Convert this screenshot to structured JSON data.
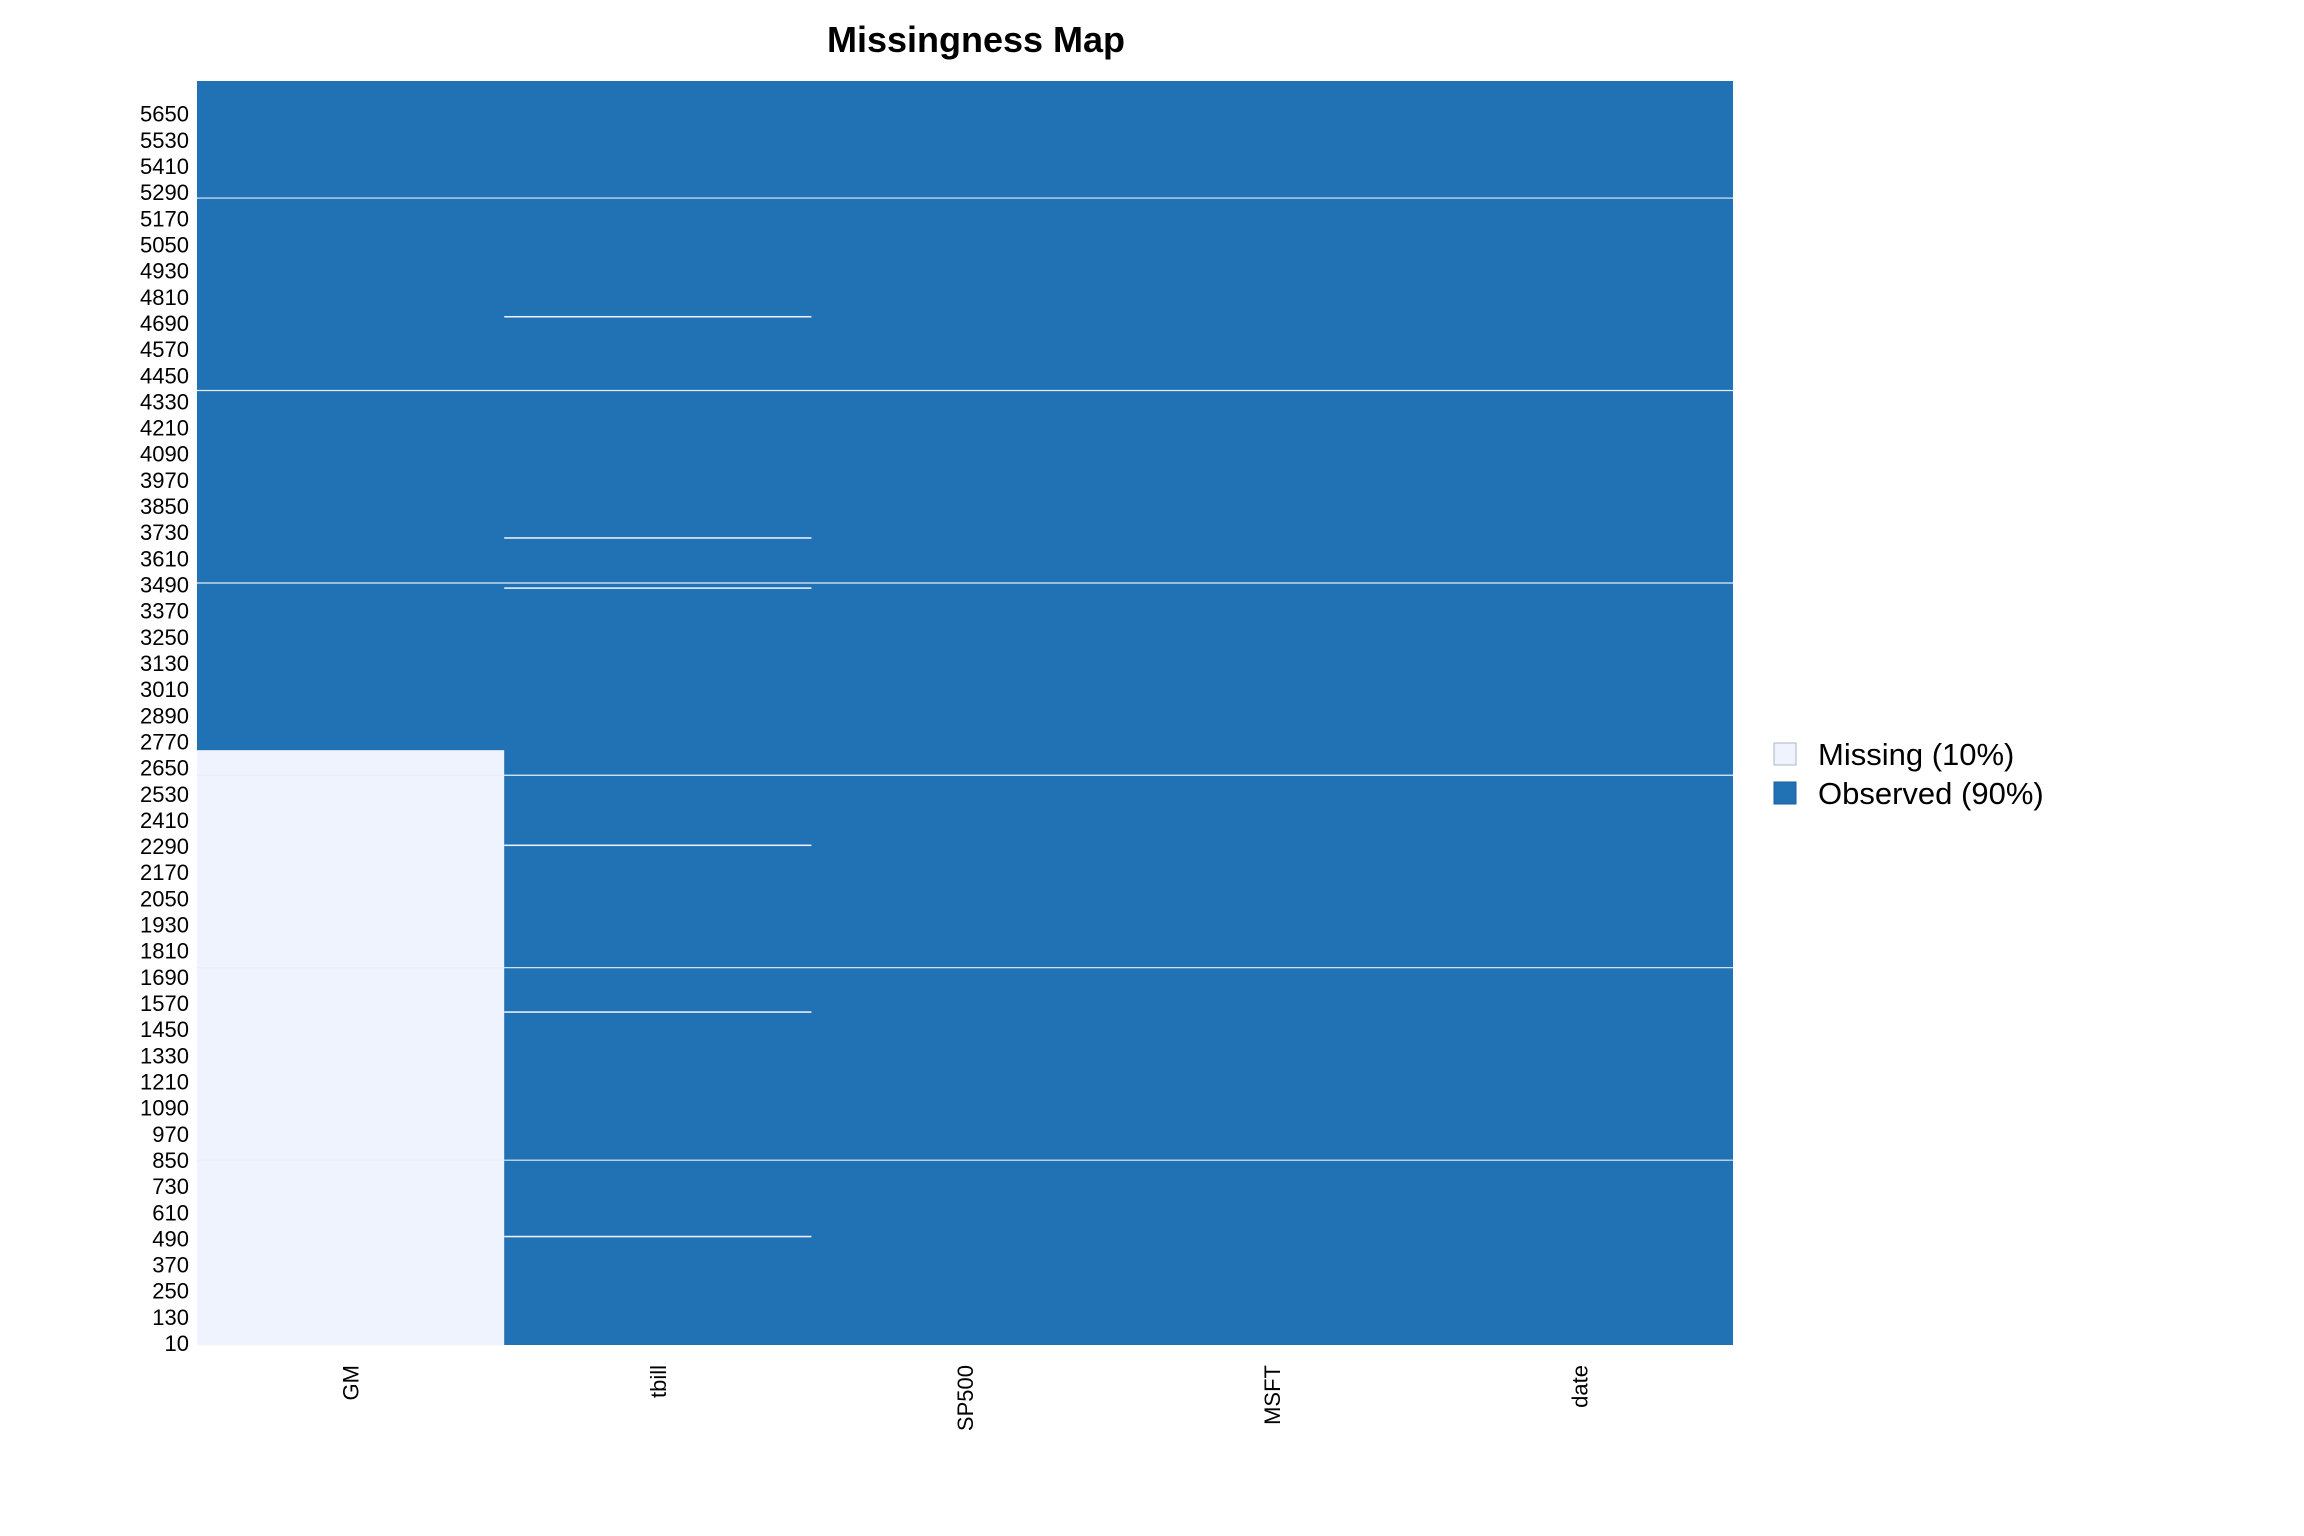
{
  "chart_data": {
    "type": "heatmap",
    "title": "Missingness Map",
    "xlabel": "",
    "ylabel": "",
    "columns": [
      "GM",
      "tbill",
      "SP500",
      "MSFT",
      "date"
    ],
    "row_range": [
      1,
      5800
    ],
    "row_tick_labels": [
      "5650",
      "5530",
      "5410",
      "5290",
      "5170",
      "5050",
      "4930",
      "4810",
      "4690",
      "4570",
      "4450",
      "4330",
      "4210",
      "4090",
      "3970",
      "3850",
      "3730",
      "3610",
      "3490",
      "3370",
      "3250",
      "3130",
      "3010",
      "2890",
      "2770",
      "2650",
      "2530",
      "2410",
      "2290",
      "2170",
      "2050",
      "1930",
      "1810",
      "1690",
      "1570",
      "1450",
      "1330",
      "1210",
      "1090",
      "970",
      "850",
      "730",
      "610",
      "490",
      "370",
      "250",
      "130",
      "10"
    ],
    "row_tick_values": [
      5650,
      5530,
      5410,
      5290,
      5170,
      5050,
      4930,
      4810,
      4690,
      4570,
      4450,
      4330,
      4210,
      4090,
      3970,
      3850,
      3730,
      3610,
      3490,
      3370,
      3250,
      3130,
      3010,
      2890,
      2770,
      2650,
      2530,
      2410,
      2290,
      2170,
      2050,
      1930,
      1810,
      1690,
      1570,
      1450,
      1330,
      1210,
      1090,
      970,
      850,
      730,
      610,
      490,
      370,
      250,
      130,
      10
    ],
    "row_separators": [
      849,
      1732,
      2615,
      3497,
      4380,
      5263
    ],
    "missing_ranges": [
      {
        "column": "GM",
        "from": 1,
        "to": 2730
      },
      {
        "column": "tbill",
        "from": 4715,
        "to": 4722
      },
      {
        "column": "tbill",
        "from": 3700,
        "to": 3707
      },
      {
        "column": "tbill",
        "from": 3470,
        "to": 3477
      },
      {
        "column": "tbill",
        "from": 2290,
        "to": 2297
      },
      {
        "column": "tbill",
        "from": 1525,
        "to": 1532
      },
      {
        "column": "tbill",
        "from": 495,
        "to": 502
      }
    ],
    "legend": {
      "placement": "right",
      "entries": [
        {
          "label": "Missing (10%)",
          "color": "#eef3fd"
        },
        {
          "label": "Observed (90%)",
          "color": "#2171b5"
        }
      ]
    },
    "colors": {
      "missing": "#eef3fd",
      "observed": "#2171b5",
      "separator": "#e8eef8"
    }
  }
}
